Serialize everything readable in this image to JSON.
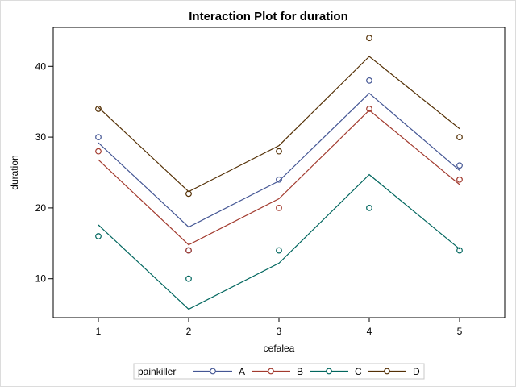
{
  "chart_data": {
    "type": "line",
    "title": "Interaction Plot for duration",
    "xlabel": "cefalea",
    "ylabel": "duration",
    "x": [
      1,
      2,
      3,
      4,
      5
    ],
    "x_ticks": [
      "1",
      "2",
      "3",
      "4",
      "5"
    ],
    "y_ticks": [
      "10",
      "20",
      "30",
      "40"
    ],
    "xlim": [
      0.5,
      5.5
    ],
    "ylim": [
      4.5,
      45.5
    ],
    "legend": {
      "title": "painkiller",
      "placement": "bottom"
    },
    "series": [
      {
        "name": "A",
        "color": "#445694",
        "observed": [
          30,
          14,
          24,
          38,
          26
        ],
        "fitted": [
          29.2,
          17.3,
          23.8,
          36.2,
          25.3
        ]
      },
      {
        "name": "B",
        "color": "#A23A2E",
        "observed": [
          28,
          14,
          20,
          34,
          24
        ],
        "fitted": [
          26.8,
          14.8,
          21.3,
          33.8,
          23.3
        ]
      },
      {
        "name": "C",
        "color": "#01665E",
        "observed": [
          16,
          10,
          14,
          20,
          14
        ],
        "fitted": [
          17.6,
          5.7,
          12.2,
          24.7,
          14.2
        ]
      },
      {
        "name": "D",
        "color": "#543005",
        "observed": [
          34,
          22,
          28,
          44,
          30
        ],
        "fitted": [
          34.2,
          22.3,
          28.8,
          41.4,
          31.2
        ]
      }
    ]
  }
}
